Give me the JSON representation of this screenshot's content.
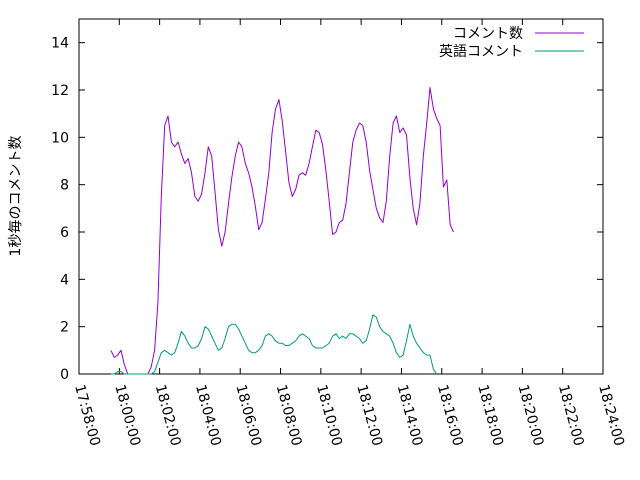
{
  "chart_data": {
    "type": "line",
    "title": "",
    "xlabel": "",
    "ylabel": "1秒毎のコメント数",
    "x_ticks": [
      "17:58:00",
      "18:00:00",
      "18:02:00",
      "18:04:00",
      "18:06:00",
      "18:08:00",
      "18:10:00",
      "18:12:00",
      "18:14:00",
      "18:16:00",
      "18:18:00",
      "18:20:00",
      "18:22:00",
      "18:24:00"
    ],
    "xlim": [
      "17:58:00",
      "18:24:00"
    ],
    "ylim": [
      0,
      15
    ],
    "y_ticks": [
      0,
      2,
      4,
      6,
      8,
      10,
      12,
      14
    ],
    "grid": false,
    "legend_position": "top-right",
    "series": [
      {
        "name": "コメント数",
        "color": "#9400d3",
        "points": [
          [
            "17:59:35",
            1.0
          ],
          [
            "17:59:45",
            0.7
          ],
          [
            "17:59:55",
            0.8
          ],
          [
            "18:00:05",
            1.0
          ],
          [
            "18:00:15",
            0.4
          ],
          [
            "18:00:25",
            0.0
          ],
          [
            "18:00:35",
            0.0
          ],
          [
            "18:00:45",
            0.0
          ],
          [
            "18:00:55",
            0.0
          ],
          [
            "18:01:05",
            0.0
          ],
          [
            "18:01:15",
            0.0
          ],
          [
            "18:01:25",
            0.0
          ],
          [
            "18:01:35",
            0.3
          ],
          [
            "18:01:45",
            1.0
          ],
          [
            "18:01:55",
            3.0
          ],
          [
            "18:02:05",
            7.5
          ],
          [
            "18:02:15",
            10.5
          ],
          [
            "18:02:25",
            10.9
          ],
          [
            "18:02:35",
            9.8
          ],
          [
            "18:02:45",
            9.6
          ],
          [
            "18:02:55",
            9.8
          ],
          [
            "18:03:05",
            9.3
          ],
          [
            "18:03:15",
            8.9
          ],
          [
            "18:03:25",
            9.1
          ],
          [
            "18:03:35",
            8.5
          ],
          [
            "18:03:45",
            7.5
          ],
          [
            "18:03:55",
            7.3
          ],
          [
            "18:04:05",
            7.6
          ],
          [
            "18:04:15",
            8.5
          ],
          [
            "18:04:25",
            9.6
          ],
          [
            "18:04:35",
            9.2
          ],
          [
            "18:04:45",
            7.7
          ],
          [
            "18:04:55",
            6.1
          ],
          [
            "18:05:05",
            5.4
          ],
          [
            "18:05:15",
            6.0
          ],
          [
            "18:05:25",
            7.2
          ],
          [
            "18:05:35",
            8.3
          ],
          [
            "18:05:45",
            9.2
          ],
          [
            "18:05:55",
            9.8
          ],
          [
            "18:06:05",
            9.6
          ],
          [
            "18:06:15",
            8.9
          ],
          [
            "18:06:25",
            8.5
          ],
          [
            "18:06:35",
            7.9
          ],
          [
            "18:06:45",
            7.1
          ],
          [
            "18:06:55",
            6.1
          ],
          [
            "18:07:05",
            6.4
          ],
          [
            "18:07:15",
            7.4
          ],
          [
            "18:07:25",
            8.5
          ],
          [
            "18:07:35",
            10.2
          ],
          [
            "18:07:45",
            11.2
          ],
          [
            "18:07:55",
            11.6
          ],
          [
            "18:08:05",
            10.7
          ],
          [
            "18:08:15",
            9.4
          ],
          [
            "18:08:25",
            8.1
          ],
          [
            "18:08:35",
            7.5
          ],
          [
            "18:08:45",
            7.8
          ],
          [
            "18:08:55",
            8.4
          ],
          [
            "18:09:05",
            8.5
          ],
          [
            "18:09:15",
            8.4
          ],
          [
            "18:09:25",
            8.9
          ],
          [
            "18:09:35",
            9.6
          ],
          [
            "18:09:45",
            10.3
          ],
          [
            "18:09:55",
            10.2
          ],
          [
            "18:10:05",
            9.7
          ],
          [
            "18:10:15",
            8.6
          ],
          [
            "18:10:25",
            7.3
          ],
          [
            "18:10:35",
            5.9
          ],
          [
            "18:10:45",
            6.0
          ],
          [
            "18:10:55",
            6.4
          ],
          [
            "18:11:05",
            6.5
          ],
          [
            "18:11:15",
            7.2
          ],
          [
            "18:11:25",
            8.5
          ],
          [
            "18:11:35",
            9.8
          ],
          [
            "18:11:45",
            10.3
          ],
          [
            "18:11:55",
            10.6
          ],
          [
            "18:12:05",
            10.5
          ],
          [
            "18:12:15",
            9.8
          ],
          [
            "18:12:25",
            8.6
          ],
          [
            "18:12:35",
            7.8
          ],
          [
            "18:12:45",
            7.0
          ],
          [
            "18:12:55",
            6.6
          ],
          [
            "18:13:05",
            6.4
          ],
          [
            "18:13:15",
            7.3
          ],
          [
            "18:13:25",
            9.2
          ],
          [
            "18:13:35",
            10.6
          ],
          [
            "18:13:45",
            10.9
          ],
          [
            "18:13:55",
            10.2
          ],
          [
            "18:14:05",
            10.4
          ],
          [
            "18:14:15",
            10.1
          ],
          [
            "18:14:25",
            8.3
          ],
          [
            "18:14:35",
            7.0
          ],
          [
            "18:14:45",
            6.3
          ],
          [
            "18:14:55",
            7.2
          ],
          [
            "18:15:05",
            9.2
          ],
          [
            "18:15:15",
            10.6
          ],
          [
            "18:15:25",
            12.1
          ],
          [
            "18:15:35",
            11.2
          ],
          [
            "18:15:45",
            10.8
          ],
          [
            "18:15:55",
            10.5
          ],
          [
            "18:16:05",
            7.9
          ],
          [
            "18:16:15",
            8.2
          ],
          [
            "18:16:25",
            6.3
          ],
          [
            "18:16:35",
            6.0
          ]
        ]
      },
      {
        "name": "英語コメント",
        "color": "#009e73",
        "points": [
          [
            "17:59:35",
            0.0
          ],
          [
            "17:59:45",
            0.0
          ],
          [
            "17:59:55",
            0.1
          ],
          [
            "18:00:05",
            0.1
          ],
          [
            "18:00:15",
            0.0
          ],
          [
            "18:00:25",
            0.0
          ],
          [
            "18:00:35",
            0.0
          ],
          [
            "18:00:45",
            0.0
          ],
          [
            "18:00:55",
            0.0
          ],
          [
            "18:01:05",
            0.0
          ],
          [
            "18:01:15",
            0.0
          ],
          [
            "18:01:25",
            0.0
          ],
          [
            "18:01:35",
            0.0
          ],
          [
            "18:01:45",
            0.1
          ],
          [
            "18:01:55",
            0.5
          ],
          [
            "18:02:05",
            0.9
          ],
          [
            "18:02:15",
            1.0
          ],
          [
            "18:02:25",
            0.9
          ],
          [
            "18:02:35",
            0.8
          ],
          [
            "18:02:45",
            0.9
          ],
          [
            "18:02:55",
            1.3
          ],
          [
            "18:03:05",
            1.8
          ],
          [
            "18:03:15",
            1.6
          ],
          [
            "18:03:25",
            1.3
          ],
          [
            "18:03:35",
            1.1
          ],
          [
            "18:03:45",
            1.1
          ],
          [
            "18:03:55",
            1.2
          ],
          [
            "18:04:05",
            1.5
          ],
          [
            "18:04:15",
            2.0
          ],
          [
            "18:04:25",
            1.9
          ],
          [
            "18:04:35",
            1.6
          ],
          [
            "18:04:45",
            1.3
          ],
          [
            "18:04:55",
            1.0
          ],
          [
            "18:05:05",
            1.1
          ],
          [
            "18:05:15",
            1.5
          ],
          [
            "18:05:25",
            2.0
          ],
          [
            "18:05:35",
            2.1
          ],
          [
            "18:05:45",
            2.1
          ],
          [
            "18:05:55",
            1.9
          ],
          [
            "18:06:05",
            1.6
          ],
          [
            "18:06:15",
            1.3
          ],
          [
            "18:06:25",
            1.0
          ],
          [
            "18:06:35",
            0.9
          ],
          [
            "18:06:45",
            0.9
          ],
          [
            "18:06:55",
            1.0
          ],
          [
            "18:07:05",
            1.2
          ],
          [
            "18:07:15",
            1.6
          ],
          [
            "18:07:25",
            1.7
          ],
          [
            "18:07:35",
            1.6
          ],
          [
            "18:07:45",
            1.4
          ],
          [
            "18:07:55",
            1.3
          ],
          [
            "18:08:05",
            1.3
          ],
          [
            "18:08:15",
            1.2
          ],
          [
            "18:08:25",
            1.2
          ],
          [
            "18:08:35",
            1.3
          ],
          [
            "18:08:45",
            1.4
          ],
          [
            "18:08:55",
            1.6
          ],
          [
            "18:09:05",
            1.7
          ],
          [
            "18:09:15",
            1.6
          ],
          [
            "18:09:25",
            1.5
          ],
          [
            "18:09:35",
            1.2
          ],
          [
            "18:09:45",
            1.1
          ],
          [
            "18:09:55",
            1.1
          ],
          [
            "18:10:05",
            1.1
          ],
          [
            "18:10:15",
            1.2
          ],
          [
            "18:10:25",
            1.3
          ],
          [
            "18:10:35",
            1.6
          ],
          [
            "18:10:45",
            1.7
          ],
          [
            "18:10:55",
            1.5
          ],
          [
            "18:11:05",
            1.6
          ],
          [
            "18:11:15",
            1.5
          ],
          [
            "18:11:25",
            1.7
          ],
          [
            "18:11:35",
            1.7
          ],
          [
            "18:11:45",
            1.6
          ],
          [
            "18:11:55",
            1.5
          ],
          [
            "18:12:05",
            1.3
          ],
          [
            "18:12:15",
            1.4
          ],
          [
            "18:12:25",
            1.9
          ],
          [
            "18:12:35",
            2.5
          ],
          [
            "18:12:45",
            2.4
          ],
          [
            "18:12:55",
            2.0
          ],
          [
            "18:13:05",
            1.8
          ],
          [
            "18:13:15",
            1.7
          ],
          [
            "18:13:25",
            1.6
          ],
          [
            "18:13:35",
            1.3
          ],
          [
            "18:13:45",
            0.9
          ],
          [
            "18:13:55",
            0.7
          ],
          [
            "18:14:05",
            0.8
          ],
          [
            "18:14:15",
            1.4
          ],
          [
            "18:14:25",
            2.1
          ],
          [
            "18:14:35",
            1.6
          ],
          [
            "18:14:45",
            1.3
          ],
          [
            "18:14:55",
            1.1
          ],
          [
            "18:15:05",
            0.9
          ],
          [
            "18:15:15",
            0.8
          ],
          [
            "18:15:25",
            0.8
          ],
          [
            "18:15:35",
            0.2
          ],
          [
            "18:15:45",
            0.0
          ]
        ]
      }
    ]
  }
}
